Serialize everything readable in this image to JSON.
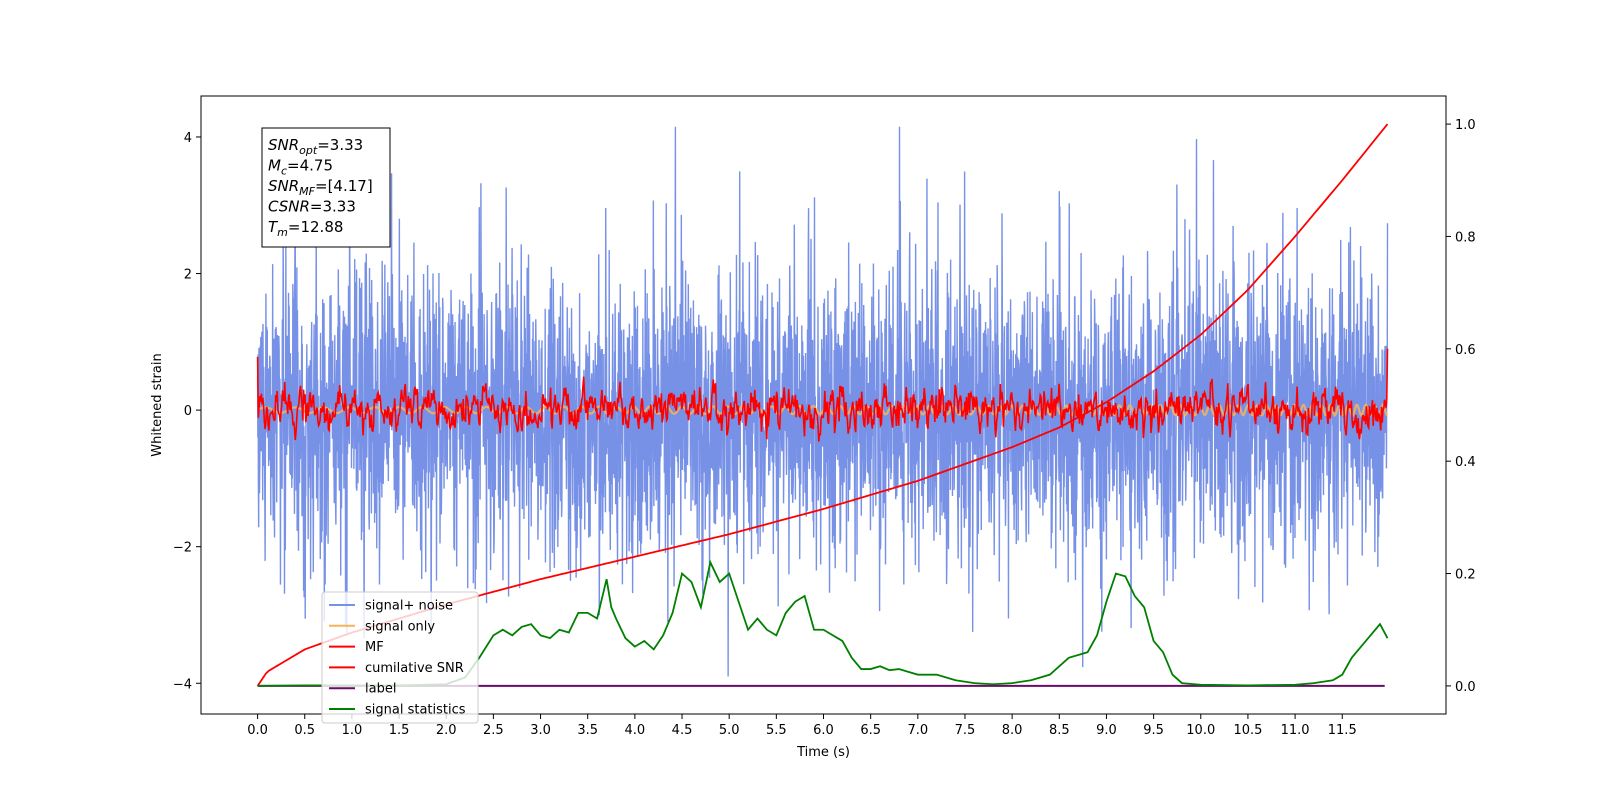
{
  "chart_data": {
    "type": "line",
    "xlabel": "Time (s)",
    "ylabel": "Whitened strain",
    "xlim": [
      -0.6,
      12.6
    ],
    "ylim": [
      -4.45,
      4.6
    ],
    "ylim_right": [
      -0.05,
      1.05
    ],
    "x_ticks": [
      "0.0",
      "0.5",
      "1.0",
      "1.5",
      "2.0",
      "2.5",
      "3.0",
      "3.5",
      "4.0",
      "4.5",
      "5.0",
      "5.5",
      "6.0",
      "6.5",
      "7.0",
      "7.5",
      "8.0",
      "8.5",
      "9.0",
      "9.5",
      "10.0",
      "10.5",
      "11.0",
      "11.5"
    ],
    "y_ticks_left": [
      "4",
      "2",
      "0",
      "−2",
      "−4"
    ],
    "y_ticks_right": [
      "1.0",
      "0.8",
      "0.6",
      "0.4",
      "0.2",
      "0.0"
    ],
    "info_box": {
      "lines": [
        {
          "label": "SNR",
          "sub": "opt",
          "value": "=3.33"
        },
        {
          "label": "M",
          "sub": "c",
          "value": "=4.75"
        },
        {
          "label": "SNR",
          "sub": "MF",
          "value": "=[4.17]"
        },
        {
          "label": "CSNR",
          "sub": "",
          "value": "=3.33"
        },
        {
          "label": "T",
          "sub": "m",
          "value": "=12.88"
        }
      ]
    },
    "legend": {
      "placement": "lower-left",
      "entries": [
        {
          "name": "signal+ noise",
          "color": "#7791e6"
        },
        {
          "name": "signal only",
          "color": "#f5b45a"
        },
        {
          "name": "MF",
          "color": "#ff0000"
        },
        {
          "name": "cumilative SNR",
          "color": "#ff0000"
        },
        {
          "name": "label",
          "color": "#6a0a6a"
        },
        {
          "name": "signal statistics",
          "color": "#008000"
        }
      ]
    },
    "series": [
      {
        "name": "signal+ noise",
        "axis": "left",
        "color": "#7791e6",
        "x_range": [
          0.0,
          11.98
        ],
        "std": 1.05,
        "noise": true
      },
      {
        "name": "signal only",
        "axis": "left",
        "color": "#f5b45a",
        "x_range": [
          0.0,
          11.98
        ],
        "amplitude": 0.08
      },
      {
        "name": "MF",
        "axis": "left",
        "color": "#ff0000",
        "x_range": [
          0.0,
          11.98
        ],
        "std": 0.2,
        "noise": true,
        "end_values": [
          0.78,
          0.9
        ]
      },
      {
        "name": "cumilative SNR",
        "axis": "right",
        "color": "#ff0000",
        "x": [
          0.0,
          0.1,
          0.5,
          1.0,
          2.0,
          3.0,
          4.0,
          5.0,
          6.0,
          7.0,
          8.0,
          8.5,
          9.0,
          9.5,
          10.0,
          10.5,
          11.0,
          11.5,
          11.98
        ],
        "values": [
          0.0,
          0.025,
          0.065,
          0.095,
          0.145,
          0.19,
          0.23,
          0.27,
          0.315,
          0.365,
          0.425,
          0.46,
          0.505,
          0.56,
          0.625,
          0.705,
          0.8,
          0.9,
          1.0
        ]
      },
      {
        "name": "label",
        "axis": "right",
        "color": "#6a0a6a",
        "x": [
          0.0,
          11.95
        ],
        "values": [
          0.0,
          0.0
        ]
      },
      {
        "name": "signal statistics",
        "axis": "right",
        "color": "#008000",
        "x": [
          0.0,
          0.5,
          1.0,
          1.5,
          2.0,
          2.2,
          2.35,
          2.5,
          2.6,
          2.7,
          2.8,
          2.9,
          3.0,
          3.1,
          3.2,
          3.3,
          3.4,
          3.5,
          3.6,
          3.7,
          3.75,
          3.8,
          3.9,
          4.0,
          4.1,
          4.2,
          4.3,
          4.4,
          4.5,
          4.6,
          4.7,
          4.8,
          4.9,
          5.0,
          5.1,
          5.2,
          5.3,
          5.4,
          5.5,
          5.6,
          5.7,
          5.8,
          5.9,
          6.0,
          6.1,
          6.2,
          6.3,
          6.4,
          6.5,
          6.6,
          6.7,
          6.8,
          6.9,
          7.0,
          7.2,
          7.4,
          7.6,
          7.8,
          8.0,
          8.2,
          8.4,
          8.6,
          8.8,
          8.9,
          9.0,
          9.1,
          9.2,
          9.3,
          9.4,
          9.5,
          9.6,
          9.7,
          9.8,
          10.0,
          10.5,
          11.0,
          11.2,
          11.4,
          11.5,
          11.6,
          11.7,
          11.8,
          11.9,
          11.98
        ],
        "values": [
          0.0,
          0.001,
          0.001,
          0.001,
          0.003,
          0.015,
          0.05,
          0.09,
          0.1,
          0.09,
          0.105,
          0.11,
          0.09,
          0.085,
          0.1,
          0.095,
          0.13,
          0.13,
          0.12,
          0.19,
          0.14,
          0.12,
          0.085,
          0.07,
          0.08,
          0.065,
          0.09,
          0.13,
          0.2,
          0.185,
          0.14,
          0.22,
          0.185,
          0.2,
          0.15,
          0.1,
          0.12,
          0.1,
          0.09,
          0.13,
          0.15,
          0.16,
          0.1,
          0.1,
          0.09,
          0.08,
          0.05,
          0.03,
          0.03,
          0.035,
          0.028,
          0.03,
          0.025,
          0.02,
          0.02,
          0.01,
          0.005,
          0.003,
          0.005,
          0.01,
          0.02,
          0.05,
          0.06,
          0.09,
          0.15,
          0.2,
          0.195,
          0.16,
          0.14,
          0.08,
          0.06,
          0.02,
          0.005,
          0.002,
          0.001,
          0.002,
          0.005,
          0.01,
          0.02,
          0.05,
          0.07,
          0.09,
          0.11,
          0.085
        ]
      }
    ]
  }
}
